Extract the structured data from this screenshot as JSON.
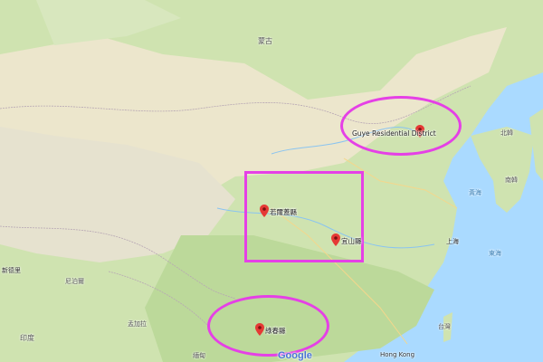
{
  "map": {
    "place_labels": {
      "mongolia": "蒙古",
      "north_korea": "北韓",
      "south_korea": "南韓",
      "yellow_sea": "黃海",
      "east_sea": "東海",
      "shanghai": "上海",
      "taiwan": "台灣",
      "hong_kong": "Hong Kong",
      "india": "印度",
      "bangladesh": "孟加拉",
      "nepal": "尼泊爾",
      "new_delhi": "新德里",
      "myanmar": "緬甸"
    },
    "markers": [
      {
        "label": "Guye Residential District",
        "color": "#e53935"
      },
      {
        "label": "若爾蓋縣",
        "color": "#e53935"
      },
      {
        "label": "宜山縣",
        "color": "#e53935"
      },
      {
        "label": "綠春縣",
        "color": "#e53935"
      }
    ],
    "highlight_color": "#e540e6",
    "logo": "Google"
  }
}
